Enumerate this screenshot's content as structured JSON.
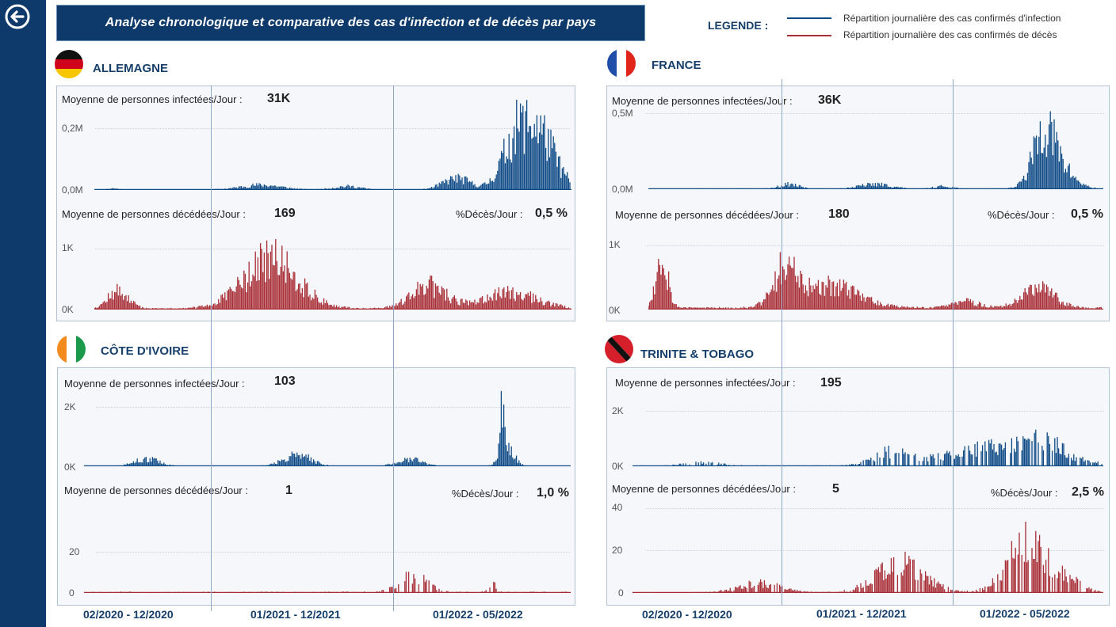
{
  "header": {
    "title": "Analyse chronologique et comparative des cas d'infection et de décès par pays"
  },
  "legend": {
    "label": "LEGENDE :",
    "infection": "Répartition journalière des cas confirmés d'infection",
    "deaths": "Répartition journalière des cas confirmés de décès"
  },
  "colors": {
    "infection": "#0d4a86",
    "deaths": "#a82d35",
    "nav": "#0e3a6b"
  },
  "labels": {
    "infected": "Moyenne de personnes infectées/Jour :",
    "deceased": "Moyenne de personnes décédées/Jour :",
    "pct": "%Décès/Jour :"
  },
  "countries": [
    {
      "name": "ALLEMAGNE",
      "infected_avg": "31K",
      "deaths_avg": "169",
      "pct": "0,5 %",
      "inf_ticks": [
        "0,2M",
        "0,0M"
      ],
      "death_ticks": [
        "1K",
        "0K"
      ],
      "flag_icon": "germany-flag-icon"
    },
    {
      "name": "FRANCE",
      "infected_avg": "36K",
      "deaths_avg": "180",
      "pct": "0,5 %",
      "inf_ticks": [
        "0,5M",
        "0,0M"
      ],
      "death_ticks": [
        "1K",
        "0K"
      ],
      "flag_icon": "france-flag-icon"
    },
    {
      "name": "CÔTE D'IVOIRE",
      "infected_avg": "103",
      "deaths_avg": "1",
      "pct": "1,0 %",
      "inf_ticks": [
        "2K",
        "0K"
      ],
      "death_ticks": [
        "20",
        "0"
      ],
      "flag_icon": "cote-divoire-flag-icon"
    },
    {
      "name": "TRINITE & TOBAGO",
      "infected_avg": "195",
      "deaths_avg": "5",
      "pct": "2,5 %",
      "inf_ticks": [
        "2K",
        "0K"
      ],
      "death_ticks": [
        "40",
        "20",
        "0"
      ],
      "flag_icon": "trinidad-tobago-flag-icon"
    }
  ],
  "periods": [
    "02/2020 - 12/2020",
    "01/2021 - 12/2021",
    "01/2022 - 05/2022"
  ]
}
